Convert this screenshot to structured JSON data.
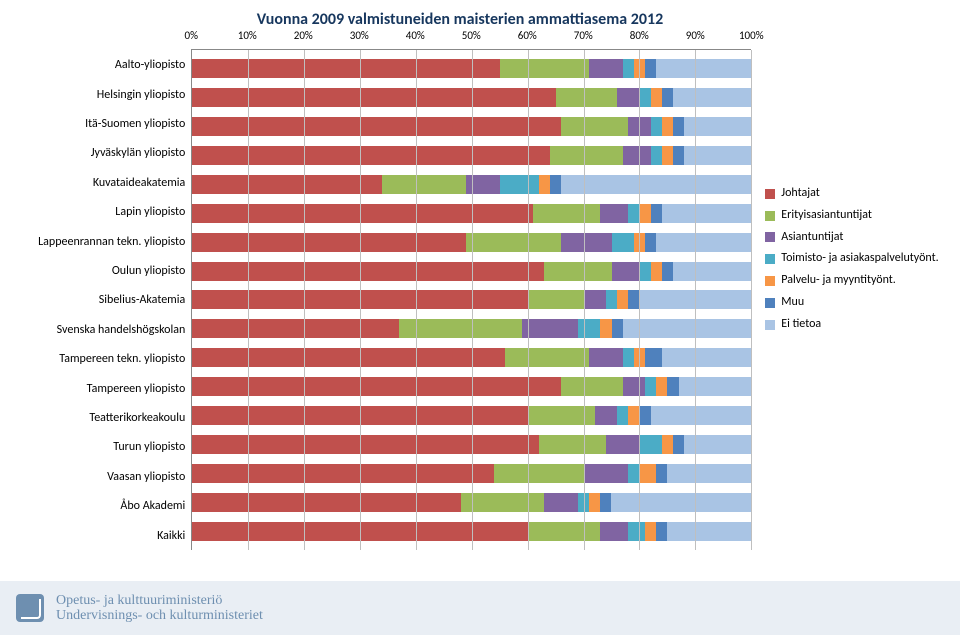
{
  "chart": {
    "type": "stacked-bar-horizontal",
    "title": "Vuonna 2009 valmistuneiden maisterien ammattiasema 2012",
    "title_color": "#17375e",
    "title_fontsize": 18,
    "xticks": [
      "0%",
      "10%",
      "20%",
      "30%",
      "40%",
      "50%",
      "60%",
      "70%",
      "80%",
      "90%",
      "100%"
    ],
    "grid_color": "#bfbfbf",
    "background_color": "#ffffff",
    "label_fontsize": 12,
    "categories": [
      "Aalto-yliopisto",
      "Helsingin yliopisto",
      "Itä-Suomen yliopisto",
      "Jyväskylän yliopisto",
      "Kuvataideakatemia",
      "Lapin yliopisto",
      "Lappeenrannan tekn. yliopisto",
      "Oulun yliopisto",
      "Sibelius-Akatemia",
      "Svenska handelshögskolan",
      "Tampereen tekn. yliopisto",
      "Tampereen yliopisto",
      "Teatterikorkeakoulu",
      "Turun yliopisto",
      "Vaasan yliopisto",
      "Åbo Akademi",
      "Kaikki"
    ],
    "series": [
      {
        "name": "Johtajat",
        "color": "#c0504d"
      },
      {
        "name": "Erityisasiantuntijat",
        "color": "#9bbb59"
      },
      {
        "name": "Asiantuntijat",
        "color": "#8064a2"
      },
      {
        "name": "Toimisto- ja asiakaspalvelutyönt.",
        "color": "#4bacc6"
      },
      {
        "name": "Palvelu- ja myyntityönt.",
        "color": "#f79646"
      },
      {
        "name": "Muu",
        "color": "#4f81bd"
      },
      {
        "name": "Ei tietoa",
        "color": "#a9c4e4"
      }
    ],
    "values": [
      [
        55,
        16,
        6,
        2,
        2,
        2,
        17
      ],
      [
        65,
        11,
        4,
        2,
        2,
        2,
        14
      ],
      [
        66,
        12,
        4,
        2,
        2,
        2,
        12
      ],
      [
        64,
        13,
        5,
        2,
        2,
        2,
        12
      ],
      [
        34,
        15,
        6,
        7,
        2,
        2,
        34
      ],
      [
        61,
        12,
        5,
        2,
        2,
        2,
        16
      ],
      [
        49,
        17,
        9,
        4,
        2,
        2,
        17
      ],
      [
        63,
        12,
        5,
        2,
        2,
        2,
        14
      ],
      [
        60,
        10,
        4,
        2,
        2,
        2,
        20
      ],
      [
        37,
        22,
        10,
        4,
        2,
        2,
        23
      ],
      [
        56,
        15,
        6,
        2,
        2,
        3,
        16
      ],
      [
        66,
        11,
        4,
        2,
        2,
        2,
        13
      ],
      [
        60,
        12,
        4,
        2,
        2,
        2,
        18
      ],
      [
        62,
        12,
        6,
        4,
        2,
        2,
        12
      ],
      [
        54,
        16,
        8,
        2,
        3,
        2,
        15
      ],
      [
        48,
        15,
        6,
        2,
        2,
        2,
        25
      ],
      [
        60,
        13,
        5,
        3,
        2,
        2,
        15
      ]
    ]
  },
  "footer": {
    "line1": "Opetus- ja kulttuuriministeriö",
    "line2": "Undervisnings- och kulturministeriet"
  }
}
